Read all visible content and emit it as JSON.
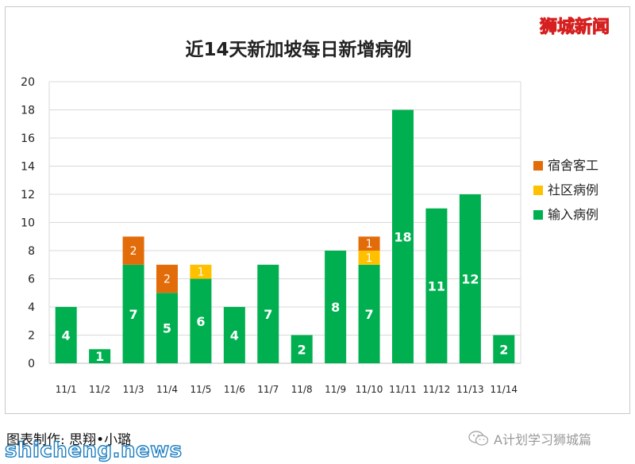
{
  "brand": "狮城新闻",
  "credit": "图表制作: 思翔•小璐",
  "wechat_account": "A计划学习狮城篇",
  "watermark": "shicheng.news",
  "colors": {
    "dorm": "#e36c0a",
    "community": "#ffc000",
    "imported": "#00b050",
    "frame": "#c9c9c9",
    "grid": "#d9d9d9"
  },
  "chart_data": {
    "type": "bar",
    "stacked": true,
    "title": "近14天新加坡每日新增病例",
    "categories": [
      "11/1",
      "11/2",
      "11/3",
      "11/4",
      "11/5",
      "11/6",
      "11/7",
      "11/8",
      "11/9",
      "11/10",
      "11/11",
      "11/12",
      "11/13",
      "11/14"
    ],
    "series": [
      {
        "name": "输入病例",
        "color": "#00b050",
        "values": [
          4,
          1,
          7,
          5,
          6,
          4,
          7,
          2,
          8,
          7,
          18,
          11,
          12,
          2
        ]
      },
      {
        "name": "社区病例",
        "color": "#ffc000",
        "values": [
          0,
          0,
          0,
          0,
          1,
          0,
          0,
          0,
          0,
          1,
          0,
          0,
          0,
          0
        ]
      },
      {
        "name": "宿舍客工",
        "color": "#e36c0a",
        "values": [
          0,
          0,
          2,
          2,
          0,
          0,
          0,
          0,
          0,
          1,
          0,
          0,
          0,
          0
        ]
      }
    ],
    "legend_order": [
      "宿舍客工",
      "社区病例",
      "输入病例"
    ],
    "legend_position": "right",
    "ylim": [
      0,
      20
    ],
    "yticks": [
      0,
      2,
      4,
      6,
      8,
      10,
      12,
      14,
      16,
      18,
      20
    ],
    "grid": true
  }
}
